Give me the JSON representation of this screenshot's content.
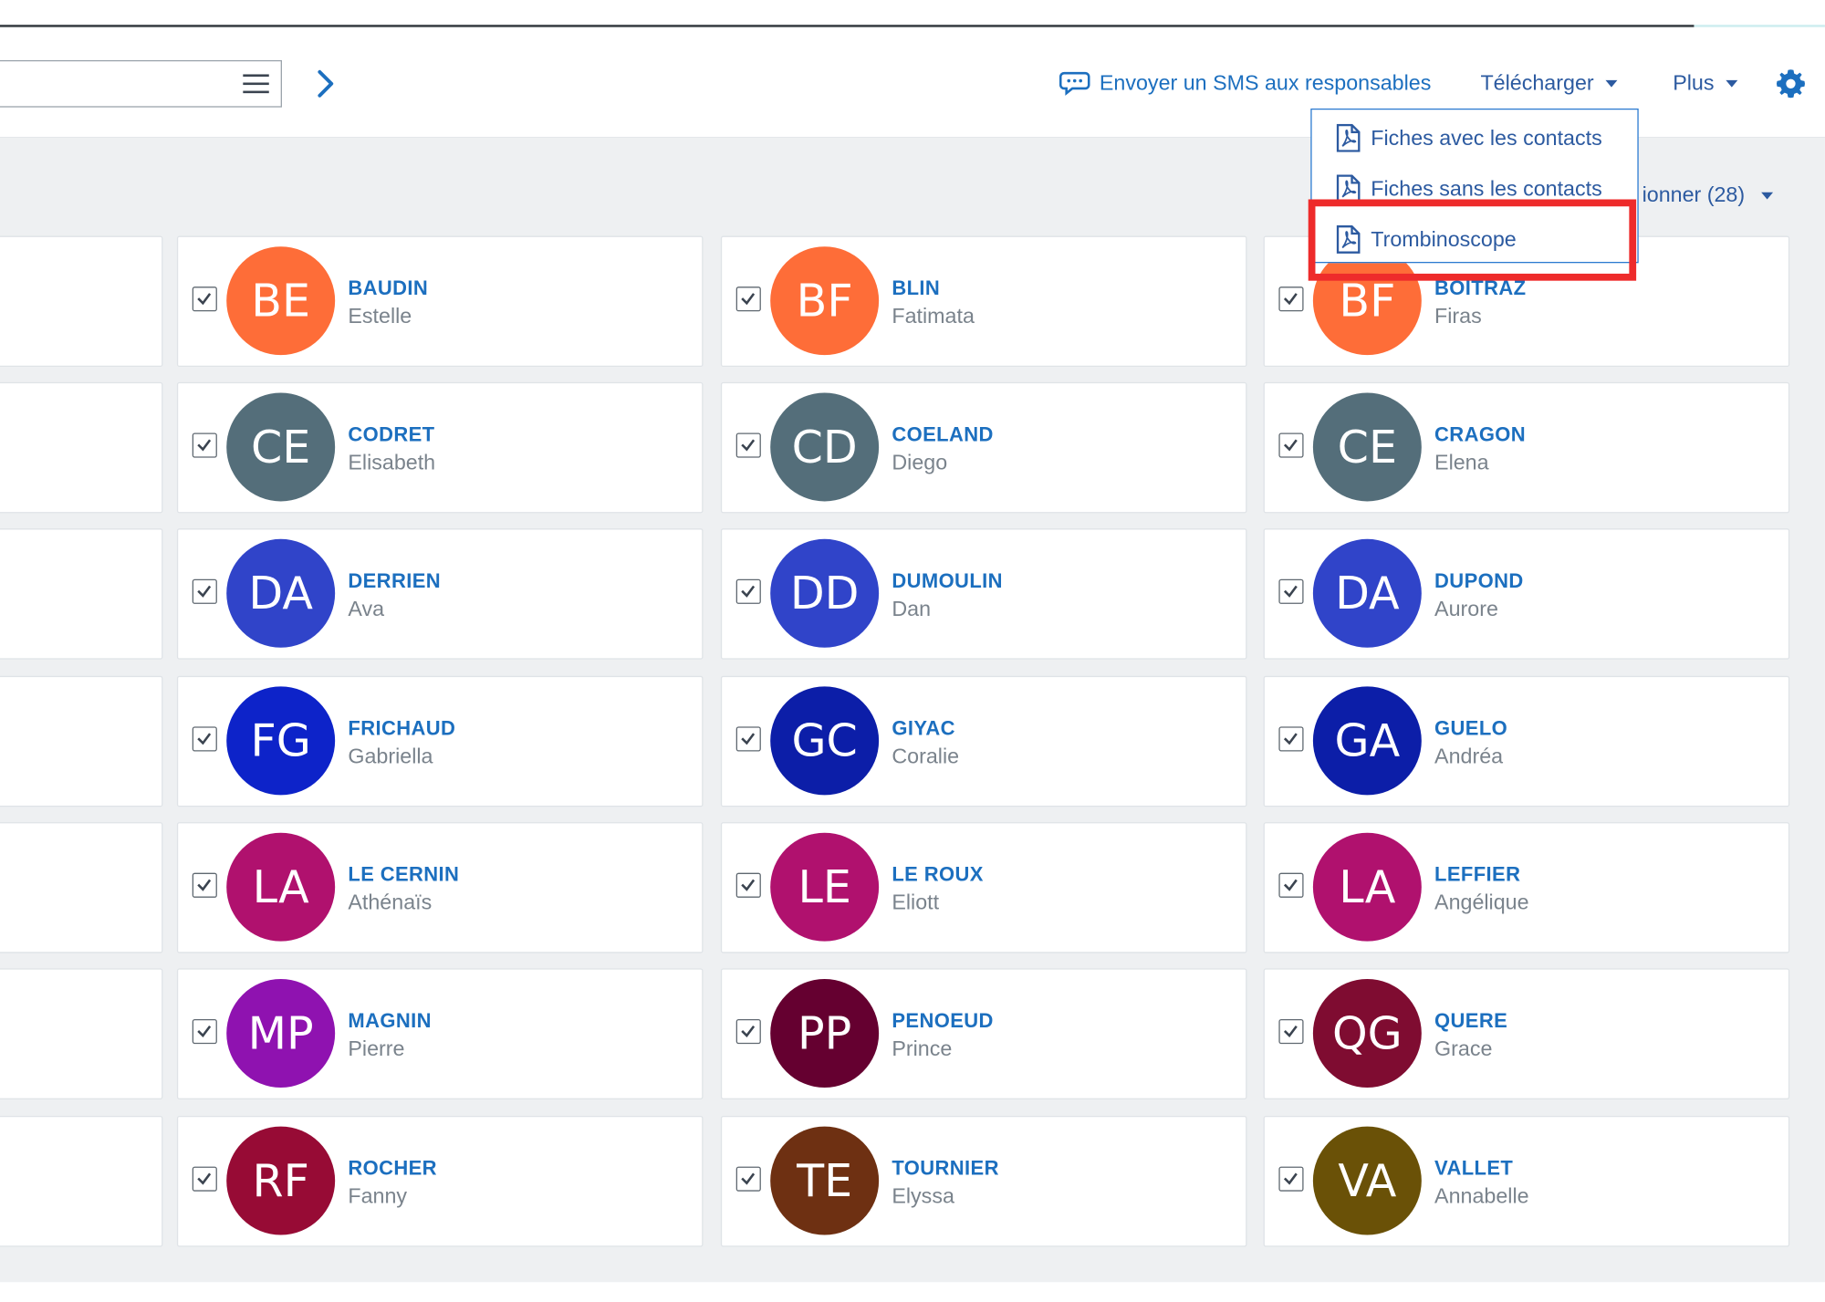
{
  "toolbar": {
    "search_placeholder": "",
    "sms_label": "Envoyer un SMS aux responsables",
    "download_label": "Télécharger",
    "more_label": "Plus"
  },
  "select_all_label": "ionner (28)",
  "download_menu": {
    "items": [
      {
        "label": "Fiches avec les contacts",
        "icon": "pdf-icon"
      },
      {
        "label": "Fiches sans les contacts",
        "icon": "pdf-icon"
      },
      {
        "label": "Trombinoscope",
        "icon": "pdf-icon",
        "highlighted": true
      }
    ]
  },
  "students": [
    {
      "initials": "BE",
      "last": "BAUDIN",
      "first": "Estelle",
      "color": "#fe6d38",
      "checked": true
    },
    {
      "initials": "BF",
      "last": "BLIN",
      "first": "Fatimata",
      "color": "#fe6d38",
      "checked": true
    },
    {
      "initials": "BF",
      "last": "BOITRAZ",
      "first": "Firas",
      "color": "#fe6d38",
      "checked": true
    },
    {
      "initials": "CE",
      "last": "CODRET",
      "first": "Elisabeth",
      "color": "#546e7a",
      "checked": true
    },
    {
      "initials": "CD",
      "last": "COELAND",
      "first": "Diego",
      "color": "#546e7a",
      "checked": true
    },
    {
      "initials": "CE",
      "last": "CRAGON",
      "first": "Elena",
      "color": "#546e7a",
      "checked": true
    },
    {
      "initials": "DA",
      "last": "DERRIEN",
      "first": "Ava",
      "color": "#3044c9",
      "checked": true
    },
    {
      "initials": "DD",
      "last": "DUMOULIN",
      "first": "Dan",
      "color": "#3044c9",
      "checked": true
    },
    {
      "initials": "DA",
      "last": "DUPOND",
      "first": "Aurore",
      "color": "#3044c9",
      "checked": true
    },
    {
      "initials": "FG",
      "last": "FRICHAUD",
      "first": "Gabriella",
      "color": "#0d23c9",
      "checked": true
    },
    {
      "initials": "GC",
      "last": "GIYAC",
      "first": "Coralie",
      "color": "#0c1ea8",
      "checked": true
    },
    {
      "initials": "GA",
      "last": "GUELO",
      "first": "Andréa",
      "color": "#0c1ea8",
      "checked": true
    },
    {
      "initials": "LA",
      "last": "LE CERNIN",
      "first": "Athénaïs",
      "color": "#b0116e",
      "checked": true
    },
    {
      "initials": "LE",
      "last": "LE ROUX",
      "first": "Eliott",
      "color": "#b0116e",
      "checked": true
    },
    {
      "initials": "LA",
      "last": "LEFFIER",
      "first": "Angélique",
      "color": "#b0116e",
      "checked": true
    },
    {
      "initials": "MP",
      "last": "MAGNIN",
      "first": "Pierre",
      "color": "#8f12b0",
      "checked": true
    },
    {
      "initials": "PP",
      "last": "PENOEUD",
      "first": "Prince",
      "color": "#650030",
      "checked": true
    },
    {
      "initials": "QG",
      "last": "QUERE",
      "first": "Grace",
      "color": "#7f0c31",
      "checked": true
    },
    {
      "initials": "RF",
      "last": "ROCHER",
      "first": "Fanny",
      "color": "#970b35",
      "checked": true
    },
    {
      "initials": "TE",
      "last": "TOURNIER",
      "first": "Elyssa",
      "color": "#6e3012",
      "checked": true
    },
    {
      "initials": "VA",
      "last": "VALLET",
      "first": "Annabelle",
      "color": "#6a5107",
      "checked": true
    }
  ]
}
